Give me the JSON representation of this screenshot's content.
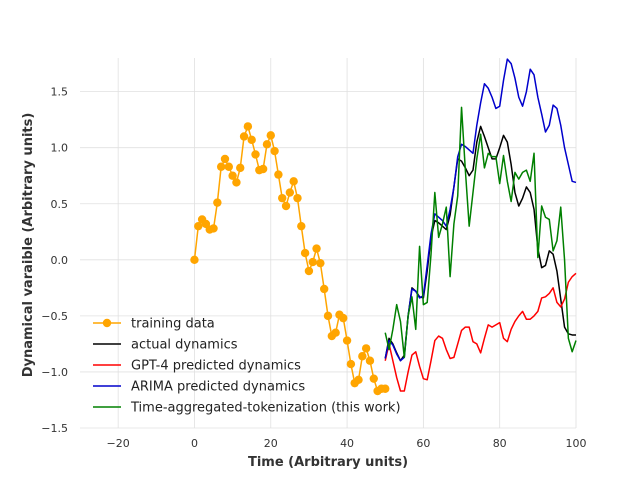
{
  "chart_data": {
    "type": "line",
    "title": "",
    "xlabel": "Time (Arbitrary units)",
    "ylabel": "Dynamical varaible (Arbitrary units)",
    "xlim": [
      -30,
      100
    ],
    "ylim": [
      -1.5,
      1.8
    ],
    "xticks": [
      -20,
      0,
      20,
      40,
      60,
      80,
      100
    ],
    "yticks": [
      -1.5,
      -1.0,
      -0.5,
      0.0,
      0.5,
      1.0,
      1.5
    ],
    "xtick_labels": [
      "−20",
      "0",
      "20",
      "40",
      "60",
      "80",
      "100"
    ],
    "ytick_labels": [
      "−1.5",
      "−1.0",
      "−0.5",
      "0.0",
      "0.5",
      "1.0",
      "1.5"
    ],
    "grid": true,
    "legend_position": "lower-left",
    "series": [
      {
        "name": "training data",
        "color": "#ffa500",
        "marker": "circle",
        "x": [
          0,
          1,
          2,
          3,
          4,
          5,
          6,
          7,
          8,
          9,
          10,
          11,
          12,
          13,
          14,
          15,
          16,
          17,
          18,
          19,
          20,
          21,
          22,
          23,
          24,
          25,
          26,
          27,
          28,
          29,
          30,
          31,
          32,
          33,
          34,
          35,
          36,
          37,
          38,
          39,
          40,
          41,
          42,
          43,
          44,
          45,
          46,
          47,
          48,
          49,
          50
        ],
        "y": [
          0.0,
          0.3,
          0.36,
          0.32,
          0.27,
          0.28,
          0.51,
          0.83,
          0.9,
          0.83,
          0.75,
          0.69,
          0.82,
          1.1,
          1.19,
          1.07,
          0.94,
          0.8,
          0.81,
          1.03,
          1.11,
          0.97,
          0.76,
          0.55,
          0.48,
          0.6,
          0.7,
          0.55,
          0.3,
          0.06,
          -0.1,
          -0.02,
          0.1,
          -0.03,
          -0.26,
          -0.5,
          -0.68,
          -0.65,
          -0.49,
          -0.52,
          -0.72,
          -0.93,
          -1.1,
          -1.07,
          -0.86,
          -0.79,
          -0.9,
          -1.06,
          -1.17,
          -1.15,
          -1.15
        ]
      },
      {
        "name": "actual dynamics",
        "color": "#000000",
        "marker": "none",
        "x": [
          50,
          51,
          52,
          53,
          54,
          55,
          56,
          57,
          58,
          59,
          60,
          61,
          62,
          63,
          64,
          65,
          66,
          67,
          68,
          69,
          70,
          71,
          72,
          73,
          74,
          75,
          76,
          77,
          78,
          79,
          80,
          81,
          82,
          83,
          84,
          85,
          86,
          87,
          88,
          89,
          90,
          91,
          92,
          93,
          94,
          95,
          96,
          97,
          98,
          99,
          100
        ],
        "y": [
          -0.88,
          -0.7,
          -0.75,
          -0.83,
          -0.9,
          -0.85,
          -0.5,
          -0.25,
          -0.28,
          -0.33,
          -0.34,
          -0.1,
          0.2,
          0.35,
          0.33,
          0.3,
          0.27,
          0.4,
          0.65,
          0.9,
          0.88,
          0.82,
          0.75,
          0.8,
          1.05,
          1.19,
          1.1,
          1.0,
          0.9,
          0.9,
          1.0,
          1.11,
          1.05,
          0.85,
          0.6,
          0.48,
          0.55,
          0.65,
          0.6,
          0.45,
          0.1,
          -0.07,
          -0.05,
          0.08,
          0.05,
          -0.1,
          -0.35,
          -0.6,
          -0.66,
          -0.67,
          -0.67
        ]
      },
      {
        "name": "GPT-4 predicted dynamics",
        "color": "#ff0000",
        "marker": "none",
        "x": [
          50,
          51,
          52,
          53,
          54,
          55,
          56,
          57,
          58,
          59,
          60,
          61,
          62,
          63,
          64,
          65,
          66,
          67,
          68,
          69,
          70,
          71,
          72,
          73,
          74,
          75,
          76,
          77,
          78,
          79,
          80,
          81,
          82,
          83,
          84,
          85,
          86,
          87,
          88,
          89,
          90,
          91,
          92,
          93,
          94,
          95,
          96,
          97,
          98,
          99,
          100
        ],
        "y": [
          -0.9,
          -0.75,
          -0.9,
          -1.05,
          -1.17,
          -1.17,
          -1.0,
          -0.85,
          -0.82,
          -0.95,
          -1.06,
          -1.07,
          -0.9,
          -0.72,
          -0.68,
          -0.7,
          -0.8,
          -0.88,
          -0.87,
          -0.75,
          -0.63,
          -0.6,
          -0.6,
          -0.73,
          -0.75,
          -0.83,
          -0.7,
          -0.58,
          -0.6,
          -0.58,
          -0.56,
          -0.7,
          -0.73,
          -0.62,
          -0.55,
          -0.5,
          -0.46,
          -0.53,
          -0.53,
          -0.5,
          -0.46,
          -0.34,
          -0.33,
          -0.3,
          -0.25,
          -0.38,
          -0.42,
          -0.35,
          -0.2,
          -0.15,
          -0.12
        ]
      },
      {
        "name": "ARIMA predicted dynamics",
        "color": "#0000cc",
        "marker": "none",
        "x": [
          50,
          51,
          52,
          53,
          54,
          55,
          56,
          57,
          58,
          59,
          60,
          61,
          62,
          63,
          64,
          65,
          66,
          67,
          68,
          69,
          70,
          71,
          72,
          73,
          74,
          75,
          76,
          77,
          78,
          79,
          80,
          81,
          82,
          83,
          84,
          85,
          86,
          87,
          88,
          89,
          90,
          91,
          92,
          93,
          94,
          95,
          96,
          97,
          98,
          99,
          100
        ],
        "y": [
          -0.88,
          -0.72,
          -0.76,
          -0.84,
          -0.9,
          -0.87,
          -0.5,
          -0.26,
          -0.28,
          -0.34,
          -0.32,
          -0.05,
          0.23,
          0.41,
          0.38,
          0.35,
          0.3,
          0.45,
          0.65,
          0.92,
          1.03,
          1.01,
          0.98,
          0.95,
          1.2,
          1.4,
          1.57,
          1.53,
          1.45,
          1.35,
          1.37,
          1.6,
          1.79,
          1.75,
          1.62,
          1.45,
          1.37,
          1.5,
          1.7,
          1.65,
          1.45,
          1.3,
          1.14,
          1.2,
          1.38,
          1.35,
          1.2,
          1.0,
          0.85,
          0.7,
          0.69
        ]
      },
      {
        "name": "Time-aggregated-tokenization (this work)",
        "color": "#008000",
        "marker": "none",
        "x": [
          50,
          51,
          52,
          53,
          54,
          55,
          56,
          57,
          58,
          59,
          60,
          61,
          62,
          63,
          64,
          65,
          66,
          67,
          68,
          69,
          70,
          71,
          72,
          73,
          74,
          75,
          76,
          77,
          78,
          79,
          80,
          81,
          82,
          83,
          84,
          85,
          86,
          87,
          88,
          89,
          90,
          91,
          92,
          93,
          94,
          95,
          96,
          97,
          98,
          99,
          100
        ],
        "y": [
          -0.65,
          -0.8,
          -0.62,
          -0.4,
          -0.55,
          -0.87,
          -0.5,
          -0.33,
          -0.62,
          0.12,
          -0.4,
          -0.38,
          0.05,
          0.6,
          0.2,
          0.32,
          0.47,
          -0.15,
          0.32,
          0.57,
          1.36,
          0.8,
          0.3,
          0.6,
          0.9,
          1.12,
          0.82,
          0.95,
          0.92,
          0.92,
          0.68,
          0.93,
          0.7,
          0.52,
          0.78,
          0.72,
          0.78,
          0.8,
          0.7,
          0.95,
          0.02,
          0.48,
          0.38,
          0.36,
          0.08,
          0.17,
          0.47,
          0.0,
          -0.7,
          -0.82,
          -0.72
        ]
      }
    ]
  }
}
